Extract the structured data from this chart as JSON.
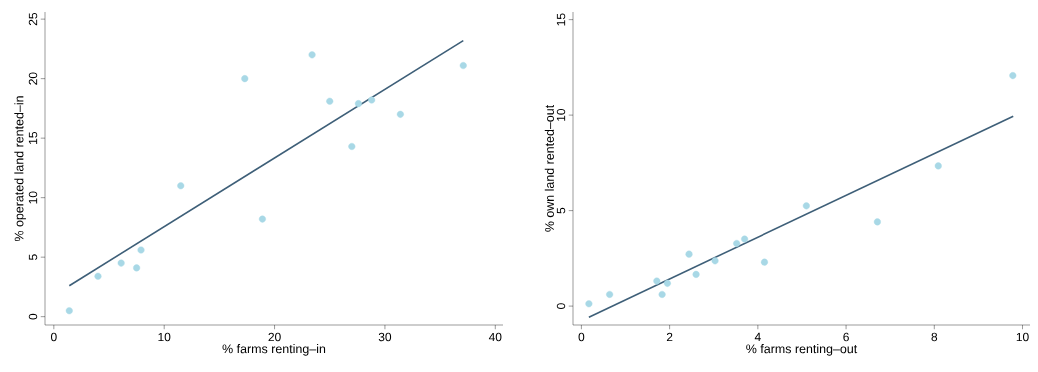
{
  "chart_data": [
    {
      "type": "scatter",
      "xlabel": "% farms renting–in",
      "ylabel": "% operated land rented–in",
      "xlim": [
        -0.8,
        40.7
      ],
      "ylim": [
        -0.7,
        25.6
      ],
      "xticks": [
        0,
        10,
        20,
        30,
        40
      ],
      "yticks": [
        0,
        5,
        10,
        15,
        20,
        25
      ],
      "series": [
        {
          "marker": "circle",
          "color": "#a8d8e6",
          "x": [
            1.4,
            4.0,
            6.1,
            7.5,
            7.9,
            11.5,
            17.3,
            18.9,
            23.4,
            25.0,
            27.0,
            27.6,
            28.8,
            31.4,
            37.1
          ],
          "values": [
            0.5,
            3.4,
            4.5,
            4.1,
            5.6,
            11.0,
            20.0,
            8.2,
            22.0,
            18.1,
            14.3,
            17.9,
            18.2,
            17.0,
            21.1
          ]
        },
        {
          "type": "line",
          "marker": "none",
          "color": "#3e5f78",
          "x": [
            1.4,
            37.1
          ],
          "values": [
            2.6,
            23.2
          ]
        }
      ]
    },
    {
      "type": "scatter",
      "xlabel": "% farms renting–out",
      "ylabel": "% own land rented–out",
      "xlim": [
        -0.19,
        10.17
      ],
      "ylim": [
        -0.99,
        15.4
      ],
      "xticks": [
        0,
        2,
        4,
        6,
        8,
        10
      ],
      "yticks": [
        0,
        5,
        10,
        15
      ],
      "series": [
        {
          "marker": "circle",
          "color": "#a8d8e6",
          "x": [
            0.17,
            0.64,
            1.71,
            1.83,
            1.95,
            2.44,
            2.6,
            3.03,
            3.52,
            3.7,
            4.15,
            5.1,
            6.71,
            8.09,
            9.78
          ],
          "values": [
            0.12,
            0.61,
            1.31,
            0.61,
            1.19,
            2.72,
            1.66,
            2.37,
            3.28,
            3.51,
            2.3,
            5.25,
            4.41,
            7.34,
            12.07
          ]
        },
        {
          "type": "line",
          "marker": "none",
          "color": "#3e5f78",
          "x": [
            0.17,
            9.79
          ],
          "values": [
            -0.58,
            9.94
          ]
        }
      ]
    }
  ]
}
